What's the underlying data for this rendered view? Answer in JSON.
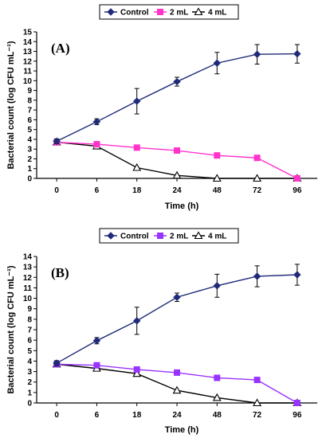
{
  "chart_data": [
    {
      "type": "line",
      "panel_label": "(A)",
      "categories": [
        "0",
        "6",
        "18",
        "24",
        "48",
        "72",
        "96"
      ],
      "xlabel": "Time (h)",
      "ylabel": "Bacterial count (log CFU mL⁻¹)",
      "ylim": [
        0,
        15
      ],
      "yticks": [
        0,
        1,
        2,
        3,
        4,
        5,
        6,
        7,
        8,
        9,
        10,
        11,
        12,
        13,
        14,
        15
      ],
      "legend_position": "top-center",
      "series": [
        {
          "name": "Control",
          "color": "#1f2a78",
          "marker": "diamond",
          "values": [
            3.8,
            5.8,
            7.9,
            9.9,
            11.8,
            12.7,
            12.75
          ],
          "errors": [
            0.25,
            0.3,
            1.3,
            0.45,
            1.1,
            1.0,
            0.95
          ]
        },
        {
          "name": "2 mL",
          "color": "#ff33cc",
          "marker": "square",
          "values": [
            3.7,
            3.5,
            3.15,
            2.85,
            2.35,
            2.1,
            0.0
          ]
        },
        {
          "name": "4 mL",
          "color": "#000000",
          "marker": "triangle-open",
          "values": [
            3.7,
            3.3,
            1.1,
            0.3,
            0.0,
            0.0,
            0.0
          ]
        }
      ]
    },
    {
      "type": "line",
      "panel_label": "(B)",
      "categories": [
        "0",
        "6",
        "18",
        "24",
        "48",
        "72",
        "96"
      ],
      "xlabel": "Time (h)",
      "ylabel": "Bacterial count (log CFU mL⁻¹)",
      "ylim": [
        0,
        14
      ],
      "yticks": [
        0,
        1,
        2,
        3,
        4,
        5,
        6,
        7,
        8,
        9,
        10,
        11,
        12,
        13,
        14
      ],
      "legend_position": "top-center",
      "series": [
        {
          "name": "Control",
          "color": "#1f2a78",
          "marker": "diamond",
          "values": [
            3.8,
            5.95,
            7.85,
            10.1,
            11.2,
            12.1,
            12.25
          ],
          "errors": [
            0.25,
            0.3,
            1.3,
            0.4,
            1.1,
            1.0,
            1.0
          ]
        },
        {
          "name": "2 mL",
          "color": "#9933ff",
          "marker": "square",
          "values": [
            3.7,
            3.6,
            3.2,
            2.9,
            2.4,
            2.2,
            0.0
          ]
        },
        {
          "name": "4 mL",
          "color": "#000000",
          "marker": "triangle-open",
          "values": [
            3.7,
            3.3,
            2.8,
            1.2,
            0.5,
            0.0,
            0.0
          ]
        }
      ]
    }
  ]
}
